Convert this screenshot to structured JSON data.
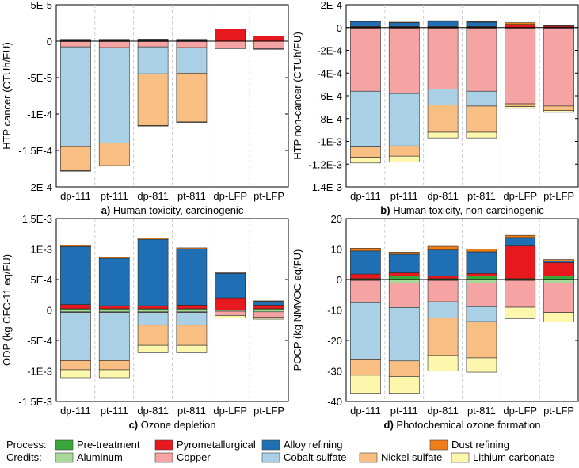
{
  "figure": {
    "legend": {
      "process_label": "Process:",
      "credits_label": "Credits:",
      "process_items": [
        {
          "key": "pretreat",
          "label": "Pre-treatment"
        },
        {
          "key": "pyro",
          "label": "Pyrometallurgical"
        },
        {
          "key": "alloy",
          "label": "Alloy refining"
        },
        {
          "key": "dust",
          "label": "Dust refining"
        }
      ],
      "credit_items": [
        {
          "key": "alu",
          "label": "Aluminum"
        },
        {
          "key": "cu",
          "label": "Copper"
        },
        {
          "key": "co",
          "label": "Cobalt sulfate"
        },
        {
          "key": "ni",
          "label": "Nickel sulfate"
        },
        {
          "key": "li",
          "label": "Lithium carbonate"
        }
      ]
    },
    "colors": {
      "pretreat": "#3aa73a",
      "pyro": "#e8181f",
      "alloy": "#1f6fb5",
      "dust": "#ef7d18",
      "alu": "#a8d99a",
      "cu": "#f6a3a3",
      "co": "#a9d0e4",
      "ni": "#f9bf82",
      "li": "#fdf7ae"
    }
  },
  "chart_data": [
    {
      "id": "a",
      "type": "bar",
      "stacked": true,
      "caption_letter": "a)",
      "caption_text": " Human toxicity, carcinogenic",
      "ylabel": "HTP cancer (CTUh/FU)",
      "ylim": [
        -0.0002,
        5e-05
      ],
      "ticks": [
        5e-05,
        0,
        -5e-05,
        -0.0001,
        -0.00015,
        -0.0002
      ],
      "tick_labels": [
        "5E-5",
        "0",
        "-5E-5",
        "-1E-4",
        "-1.5E-4",
        "-2E-4"
      ],
      "categories": [
        "dp-111",
        "pt-111",
        "dp-811",
        "pt-811",
        "dp-LFP",
        "pt-LFP"
      ],
      "series": [
        {
          "key": "pretreat",
          "values": [
            3e-07,
            3e-07,
            3e-07,
            3e-07,
            0,
            0
          ]
        },
        {
          "key": "pyro",
          "values": [
            5e-07,
            5e-07,
            5e-07,
            5e-07,
            1.7e-05,
            7e-06
          ]
        },
        {
          "key": "alloy",
          "values": [
            1.2e-06,
            1.2e-06,
            1.5e-06,
            1.2e-06,
            0,
            0
          ]
        },
        {
          "key": "dust",
          "values": [
            5e-07,
            5e-07,
            5e-07,
            5e-07,
            0,
            0
          ]
        },
        {
          "key": "alu",
          "values": [
            -5e-07,
            -5e-07,
            -5e-07,
            -5e-07,
            0,
            0
          ]
        },
        {
          "key": "cu",
          "values": [
            -7.3e-06,
            -8.3e-06,
            -7.3e-06,
            -8.3e-06,
            -9.5e-06,
            -1.05e-05
          ]
        },
        {
          "key": "co",
          "values": [
            -0.000137,
            -0.000131,
            -3.7e-05,
            -3.5e-05,
            0,
            0
          ]
        },
        {
          "key": "ni",
          "values": [
            -3.3e-05,
            -3.1e-05,
            -7.1e-05,
            -6.7e-05,
            0,
            0
          ]
        },
        {
          "key": "li",
          "values": [
            -5e-07,
            -5e-07,
            -5e-07,
            -5e-07,
            -5e-07,
            -5e-07
          ]
        }
      ]
    },
    {
      "id": "b",
      "type": "bar",
      "stacked": true,
      "caption_letter": "b)",
      "caption_text": " Human toxicity, non-carcinogenic",
      "ylabel": "HTP non-cancer (CTUh/FU)",
      "ylim": [
        -0.0014,
        0.0002
      ],
      "ticks": [
        0.0002,
        0,
        -0.0002,
        -0.0004,
        -0.0006,
        -0.0008,
        -0.001,
        -0.0012,
        -0.0014
      ],
      "tick_labels": [
        "2E-4",
        "0",
        "-2E-4",
        "-4E-4",
        "-6E-4",
        "-8E-4",
        "-1E-3",
        "-1.2E-3",
        "-1.4E-3"
      ],
      "categories": [
        "dp-111",
        "pt-111",
        "dp-811",
        "pt-811",
        "dp-LFP",
        "pt-LFP"
      ],
      "series": [
        {
          "key": "pretreat",
          "values": [
            5e-06,
            5e-06,
            5e-06,
            5e-06,
            0,
            0
          ]
        },
        {
          "key": "pyro",
          "values": [
            5e-06,
            5e-06,
            5e-06,
            5e-06,
            2.8e-05,
            1.3e-05
          ]
        },
        {
          "key": "alloy",
          "values": [
            4.2e-05,
            3.2e-05,
            4.5e-05,
            3.7e-05,
            0,
            0
          ]
        },
        {
          "key": "dust",
          "values": [
            5e-06,
            5e-06,
            5e-06,
            5e-06,
            1.5e-05,
            5e-06
          ]
        },
        {
          "key": "alu",
          "values": [
            -5e-06,
            -5e-06,
            -5e-06,
            -5e-06,
            -5e-06,
            -5e-06
          ]
        },
        {
          "key": "cu",
          "values": [
            -0.000555,
            -0.000575,
            -0.000535,
            -0.000555,
            -0.000665,
            -0.000685
          ]
        },
        {
          "key": "co",
          "values": [
            -0.00049,
            -0.00046,
            -0.00014,
            -0.00013,
            0,
            0
          ]
        },
        {
          "key": "ni",
          "values": [
            -9e-05,
            -9e-05,
            -0.00024,
            -0.00023,
            -2.5e-05,
            -4e-05
          ]
        },
        {
          "key": "li",
          "values": [
            -5e-05,
            -5e-05,
            -5e-05,
            -5e-05,
            -1.5e-05,
            -1.5e-05
          ]
        }
      ]
    },
    {
      "id": "c",
      "type": "bar",
      "stacked": true,
      "caption_letter": "c)",
      "caption_text": " Ozone depletion",
      "ylabel": "ODP (kg CFC-11 eq/FU)",
      "ylim": [
        -0.0015,
        0.0015
      ],
      "ticks": [
        0.0015,
        0.001,
        0.0005,
        0,
        -0.0005,
        -0.001,
        -0.0015
      ],
      "tick_labels": [
        "1.5E-3",
        "1E-3",
        "5E-4",
        "0",
        "-5E-4",
        "-1E-3",
        "-1.5E-3"
      ],
      "categories": [
        "dp-111",
        "pt-111",
        "dp-811",
        "pt-811",
        "dp-LFP",
        "pt-LFP"
      ],
      "series": [
        {
          "key": "pretreat",
          "values": [
            2e-05,
            2e-05,
            2e-05,
            2e-05,
            0,
            2e-05
          ]
        },
        {
          "key": "pyro",
          "values": [
            7e-05,
            5e-05,
            5e-05,
            6e-05,
            0.0002,
            6e-05
          ]
        },
        {
          "key": "alloy",
          "values": [
            0.00095,
            0.00078,
            0.00109,
            0.00092,
            0.0004,
            6e-05
          ]
        },
        {
          "key": "dust",
          "values": [
            2e-05,
            2e-05,
            2e-05,
            2e-05,
            1e-05,
            1e-05
          ]
        },
        {
          "key": "alu",
          "values": [
            -3e-05,
            -3e-05,
            -3e-05,
            -3e-05,
            -2e-05,
            -3e-05
          ]
        },
        {
          "key": "cu",
          "values": [
            -1e-05,
            -1e-05,
            -1e-05,
            -1e-05,
            -7e-05,
            -9e-05
          ]
        },
        {
          "key": "co",
          "values": [
            -0.00079,
            -0.00079,
            -0.00021,
            -0.00021,
            0,
            0
          ]
        },
        {
          "key": "ni",
          "values": [
            -0.00015,
            -0.00015,
            -0.00033,
            -0.00033,
            0,
            0
          ]
        },
        {
          "key": "li",
          "values": [
            -0.00013,
            -0.00013,
            -0.00012,
            -0.00012,
            -4e-05,
            -3e-05
          ]
        }
      ]
    },
    {
      "id": "d",
      "type": "bar",
      "stacked": true,
      "caption_letter": "d)",
      "caption_text": " Photochemical ozone formation",
      "ylabel": "POCP (kg NMVOC eq/FU)",
      "ylim": [
        -40,
        20
      ],
      "ticks": [
        20,
        10,
        0,
        -10,
        -20,
        -30,
        -40
      ],
      "tick_labels": [
        "20",
        "10",
        "0",
        "-10",
        "-20",
        "-30",
        "-40"
      ],
      "categories": [
        "dp-111",
        "pt-111",
        "dp-811",
        "pt-811",
        "dp-LFP",
        "pt-LFP"
      ],
      "series": [
        {
          "key": "pretreat",
          "values": [
            0.3,
            1.2,
            0.3,
            1.2,
            0.3,
            1.2
          ]
        },
        {
          "key": "pyro",
          "values": [
            1.5,
            1,
            0.8,
            0.8,
            10.7,
            4.4
          ]
        },
        {
          "key": "alloy",
          "values": [
            7.6,
            6.1,
            8.6,
            7.1,
            2.8,
            0.5
          ]
        },
        {
          "key": "dust",
          "values": [
            0.9,
            0.7,
            1.2,
            0.9,
            0.7,
            0.5
          ]
        },
        {
          "key": "alu",
          "values": [
            -0.3,
            -1.2,
            -0.3,
            -1.2,
            -0.3,
            -1.2
          ]
        },
        {
          "key": "cu",
          "values": [
            -7.3,
            -8,
            -7,
            -7.7,
            -8.8,
            -9.6
          ]
        },
        {
          "key": "co",
          "values": [
            -18.5,
            -17.5,
            -5.3,
            -4.9,
            0,
            0
          ]
        },
        {
          "key": "ni",
          "values": [
            -5.3,
            -5.1,
            -12.3,
            -11.9,
            0,
            0
          ]
        },
        {
          "key": "li",
          "values": [
            -5.9,
            -5.5,
            -5.1,
            -4.7,
            -3.7,
            -3.1
          ]
        }
      ]
    }
  ]
}
